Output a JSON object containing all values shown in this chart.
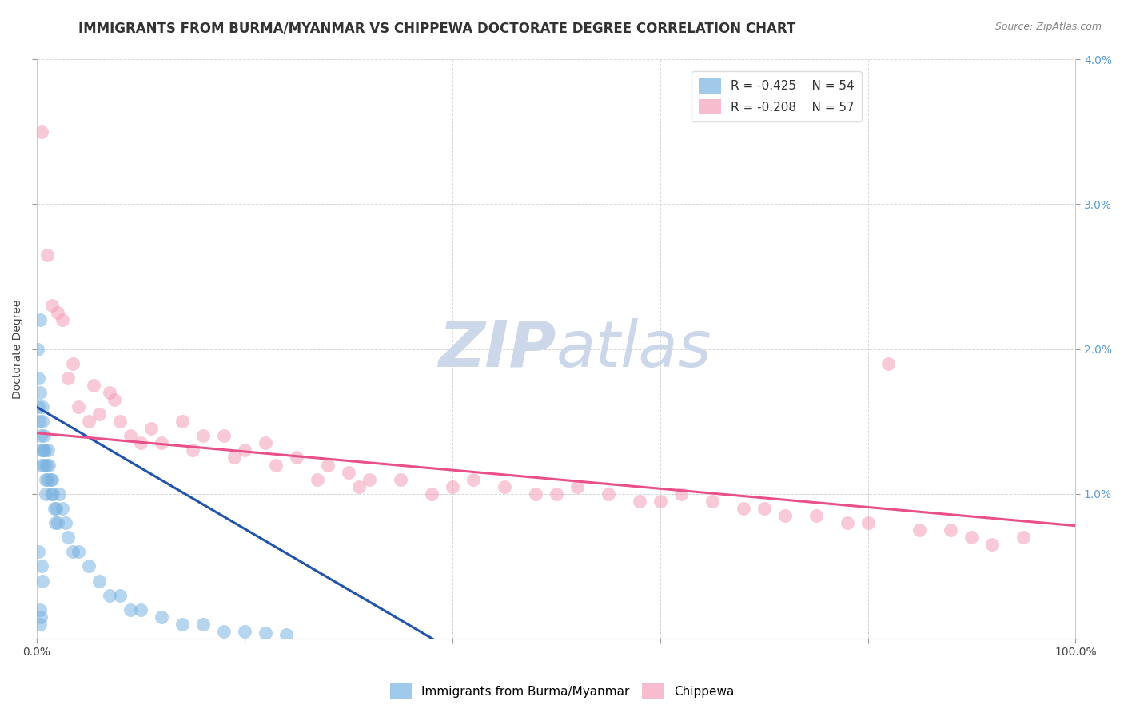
{
  "title": "IMMIGRANTS FROM BURMA/MYANMAR VS CHIPPEWA DOCTORATE DEGREE CORRELATION CHART",
  "source_text": "Source: ZipAtlas.com",
  "xlabel": "",
  "ylabel": "Doctorate Degree",
  "xlim": [
    0,
    100
  ],
  "ylim": [
    0,
    4.0
  ],
  "xtick_vals": [
    0,
    20,
    40,
    60,
    80,
    100
  ],
  "xtick_labels": [
    "0.0%",
    "",
    "",
    "",
    "",
    "100.0%"
  ],
  "ytick_vals": [
    0,
    1.0,
    2.0,
    3.0,
    4.0
  ],
  "ytick_labels_left": [
    "",
    "",
    "",
    "",
    ""
  ],
  "ytick_labels_right": [
    "",
    "1.0%",
    "2.0%",
    "3.0%",
    "4.0%"
  ],
  "legend_entry1": "R = -0.425    N = 54",
  "legend_entry2": "R = -0.208    N = 57",
  "legend_label1": "Immigrants from Burma/Myanmar",
  "legend_label2": "Chippewa",
  "blue_scatter_x": [
    0.1,
    0.15,
    0.2,
    0.25,
    0.3,
    0.35,
    0.4,
    0.45,
    0.5,
    0.55,
    0.6,
    0.65,
    0.7,
    0.75,
    0.8,
    0.85,
    0.9,
    0.95,
    1.0,
    1.1,
    1.2,
    1.3,
    1.4,
    1.5,
    1.6,
    1.7,
    1.8,
    1.9,
    2.0,
    2.2,
    2.5,
    2.8,
    3.0,
    3.5,
    4.0,
    5.0,
    6.0,
    7.0,
    8.0,
    9.0,
    10.0,
    12.0,
    14.0,
    16.0,
    18.0,
    20.0,
    22.0,
    24.0,
    0.3,
    0.4,
    0.2,
    0.5,
    0.6,
    0.3
  ],
  "blue_scatter_y": [
    2.0,
    1.8,
    1.6,
    1.5,
    1.7,
    2.2,
    1.4,
    1.3,
    1.2,
    1.6,
    1.5,
    1.3,
    1.2,
    1.4,
    1.3,
    1.1,
    1.0,
    1.2,
    1.1,
    1.3,
    1.2,
    1.1,
    1.0,
    1.1,
    1.0,
    0.9,
    0.8,
    0.9,
    0.8,
    1.0,
    0.9,
    0.8,
    0.7,
    0.6,
    0.6,
    0.5,
    0.4,
    0.3,
    0.3,
    0.2,
    0.2,
    0.15,
    0.1,
    0.1,
    0.05,
    0.05,
    0.04,
    0.03,
    0.2,
    0.15,
    0.6,
    0.5,
    0.4,
    0.1
  ],
  "pink_scatter_x": [
    0.5,
    1.0,
    1.5,
    2.0,
    3.0,
    4.0,
    5.0,
    6.0,
    7.0,
    8.0,
    9.0,
    10.0,
    12.0,
    14.0,
    16.0,
    18.0,
    20.0,
    22.0,
    25.0,
    28.0,
    30.0,
    32.0,
    35.0,
    38.0,
    40.0,
    42.0,
    45.0,
    48.0,
    50.0,
    52.0,
    55.0,
    58.0,
    60.0,
    62.0,
    65.0,
    68.0,
    70.0,
    72.0,
    75.0,
    78.0,
    80.0,
    82.0,
    85.0,
    88.0,
    90.0,
    92.0,
    95.0,
    2.5,
    3.5,
    5.5,
    7.5,
    11.0,
    15.0,
    19.0,
    23.0,
    27.0,
    31.0
  ],
  "pink_scatter_y": [
    3.5,
    2.65,
    2.3,
    2.25,
    1.8,
    1.6,
    1.5,
    1.55,
    1.7,
    1.5,
    1.4,
    1.35,
    1.35,
    1.5,
    1.4,
    1.4,
    1.3,
    1.35,
    1.25,
    1.2,
    1.15,
    1.1,
    1.1,
    1.0,
    1.05,
    1.1,
    1.05,
    1.0,
    1.0,
    1.05,
    1.0,
    0.95,
    0.95,
    1.0,
    0.95,
    0.9,
    0.9,
    0.85,
    0.85,
    0.8,
    0.8,
    1.9,
    0.75,
    0.75,
    0.7,
    0.65,
    0.7,
    2.2,
    1.9,
    1.75,
    1.65,
    1.45,
    1.3,
    1.25,
    1.2,
    1.1,
    1.05
  ],
  "blue_line_x": [
    0,
    100
  ],
  "blue_line_y": [
    1.6,
    -2.6
  ],
  "pink_line_x": [
    0,
    100
  ],
  "pink_line_y": [
    1.42,
    0.78
  ],
  "blue_dot_color": "#7ab3e0",
  "pink_dot_color": "#f4a0b8",
  "blue_line_color": "#2255aa",
  "pink_line_color": "#e8508a",
  "background_color": "#ffffff",
  "grid_color": "#cccccc",
  "title_fontsize": 12,
  "axis_label_fontsize": 10,
  "tick_fontsize": 10,
  "watermark_color": "#ccd8ea",
  "watermark_fontsize": 58
}
